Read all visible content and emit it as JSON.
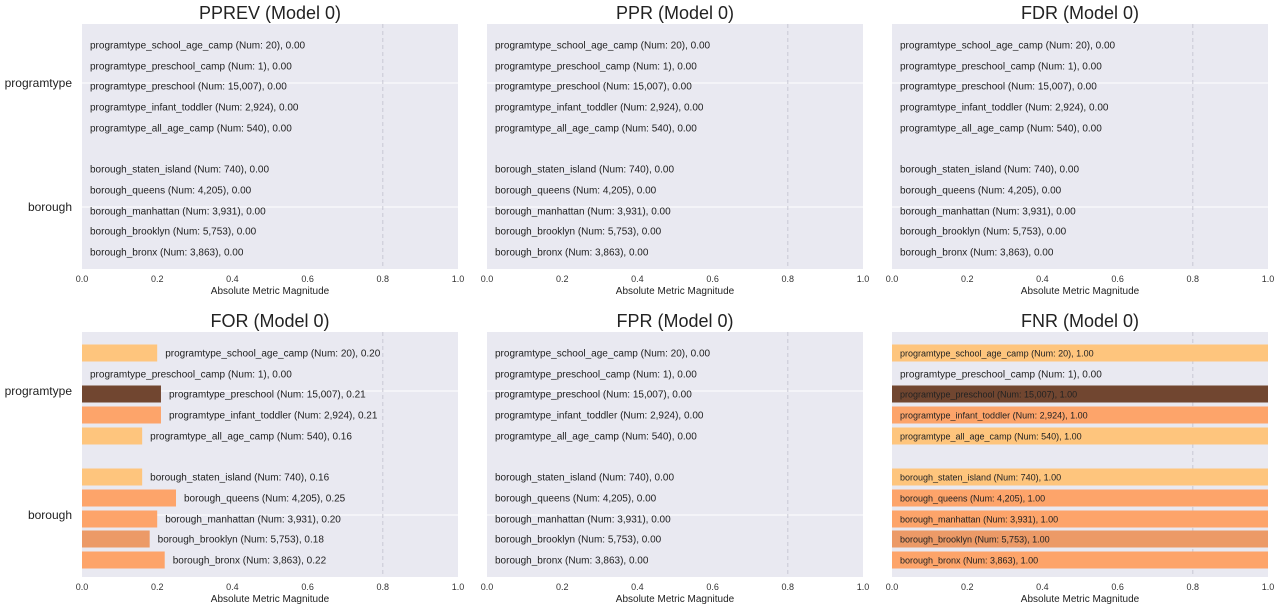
{
  "figure": {
    "xlabel": "Absolute Metric Magnitude",
    "xlim": [
      0,
      1
    ],
    "xticks": [
      "0.0",
      "0.2",
      "0.4",
      "0.6",
      "0.8",
      "1.0"
    ],
    "groups": [
      {
        "name": "programtype",
        "rows": [
          0,
          1,
          2,
          3,
          4
        ]
      },
      {
        "name": "borough",
        "rows": [
          5,
          6,
          7,
          8,
          9
        ]
      }
    ],
    "row_labels": [
      "programtype_school_age_camp (Num: 20)",
      "programtype_preschool_camp (Num: 1)",
      "programtype_preschool (Num: 15,007)",
      "programtype_infant_toddler (Num: 2,924)",
      "programtype_all_age_camp (Num: 540)",
      "borough_staten_island (Num: 740)",
      "borough_queens (Num: 4,205)",
      "borough_manhattan (Num: 3,931)",
      "borough_brooklyn (Num: 5,753)",
      "borough_bronx (Num: 3,863)"
    ],
    "colors": {
      "background": "#e9e9f1",
      "light": "#fec57d",
      "medium": "#fda46a",
      "medium_dark": "#ec9a67",
      "dark": "#714630"
    }
  },
  "chart_data": [
    {
      "type": "bar",
      "title": "PPREV (Model 0)",
      "xlabel": "Absolute Metric Magnitude",
      "xlim": [
        0,
        1
      ],
      "values": [
        0.0,
        0.0,
        0.0,
        0.0,
        0.0,
        0.0,
        0.0,
        0.0,
        0.0,
        0.0
      ],
      "value_labels": [
        "0.00",
        "0.00",
        "0.00",
        "0.00",
        "0.00",
        "0.00",
        "0.00",
        "0.00",
        "0.00",
        "0.00"
      ],
      "bar_colors": [
        "light",
        "light",
        "light",
        "light",
        "light",
        "light",
        "light",
        "light",
        "light",
        "light"
      ]
    },
    {
      "type": "bar",
      "title": "PPR (Model 0)",
      "xlabel": "Absolute Metric Magnitude",
      "xlim": [
        0,
        1
      ],
      "values": [
        0.0,
        0.0,
        0.0,
        0.0,
        0.0,
        0.0,
        0.0,
        0.0,
        0.0,
        0.0
      ],
      "value_labels": [
        "0.00",
        "0.00",
        "0.00",
        "0.00",
        "0.00",
        "0.00",
        "0.00",
        "0.00",
        "0.00",
        "0.00"
      ],
      "bar_colors": [
        "light",
        "light",
        "light",
        "light",
        "light",
        "light",
        "light",
        "light",
        "light",
        "light"
      ]
    },
    {
      "type": "bar",
      "title": "FDR (Model 0)",
      "xlabel": "Absolute Metric Magnitude",
      "xlim": [
        0,
        1
      ],
      "values": [
        0.0,
        0.0,
        0.0,
        0.0,
        0.0,
        0.0,
        0.0,
        0.0,
        0.0,
        0.0
      ],
      "value_labels": [
        "0.00",
        "0.00",
        "0.00",
        "0.00",
        "0.00",
        "0.00",
        "0.00",
        "0.00",
        "0.00",
        "0.00"
      ],
      "bar_colors": [
        "light",
        "light",
        "light",
        "light",
        "light",
        "light",
        "light",
        "light",
        "light",
        "light"
      ]
    },
    {
      "type": "bar",
      "title": "FOR (Model 0)",
      "xlabel": "Absolute Metric Magnitude",
      "xlim": [
        0,
        1
      ],
      "values": [
        0.2,
        0.0,
        0.21,
        0.21,
        0.16,
        0.16,
        0.25,
        0.2,
        0.18,
        0.22
      ],
      "value_labels": [
        "0.20",
        "0.00",
        "0.21",
        "0.21",
        "0.16",
        "0.16",
        "0.25",
        "0.20",
        "0.18",
        "0.22"
      ],
      "bar_colors": [
        "light",
        "light",
        "dark",
        "medium",
        "light",
        "light",
        "medium",
        "medium",
        "medium_dark",
        "medium"
      ]
    },
    {
      "type": "bar",
      "title": "FPR (Model 0)",
      "xlabel": "Absolute Metric Magnitude",
      "xlim": [
        0,
        1
      ],
      "values": [
        0.0,
        0.0,
        0.0,
        0.0,
        0.0,
        0.0,
        0.0,
        0.0,
        0.0,
        0.0
      ],
      "value_labels": [
        "0.00",
        "0.00",
        "0.00",
        "0.00",
        "0.00",
        "0.00",
        "0.00",
        "0.00",
        "0.00",
        "0.00"
      ],
      "bar_colors": [
        "light",
        "light",
        "light",
        "light",
        "light",
        "light",
        "light",
        "light",
        "light",
        "light"
      ]
    },
    {
      "type": "bar",
      "title": "FNR (Model 0)",
      "xlabel": "Absolute Metric Magnitude",
      "xlim": [
        0,
        1
      ],
      "values": [
        1.0,
        0.0,
        1.0,
        1.0,
        1.0,
        1.0,
        1.0,
        1.0,
        1.0,
        1.0
      ],
      "value_labels": [
        "1.00",
        "0.00",
        "1.00",
        "1.00",
        "1.00",
        "1.00",
        "1.00",
        "1.00",
        "1.00",
        "1.00"
      ],
      "bar_colors": [
        "light",
        "light",
        "dark",
        "medium",
        "light",
        "light",
        "medium",
        "medium",
        "medium_dark",
        "medium"
      ]
    }
  ]
}
